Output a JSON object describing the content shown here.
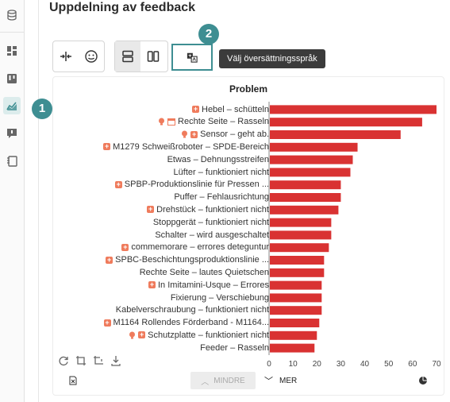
{
  "page": {
    "title": "Uppdelning av feedback"
  },
  "sidebar": {
    "icons": [
      "database-icon",
      "dashboard-icon",
      "board-icon",
      "analytics-icon",
      "feedback-icon",
      "notebook-icon"
    ],
    "active": "analytics-icon"
  },
  "toolbar": {
    "translate_tooltip": "Välj översättningsspråk"
  },
  "markers": {
    "one": "1",
    "two": "2"
  },
  "colors": {
    "bar": "#d93232",
    "accent": "#3e8e92",
    "badge": "#ef7b5c"
  },
  "chart_data": {
    "type": "bar",
    "orientation": "horizontal",
    "title": "Problem",
    "xlim": [
      0,
      70
    ],
    "xticks": [
      0,
      10,
      20,
      30,
      40,
      50,
      60,
      70
    ],
    "categories": [
      "Hebel – schütteln",
      "Rechte Seite – Rasseln",
      "Sensor – geht ab.",
      "M1279 Schweißroboter – SPDE-Bereich",
      "Etwas – Dehnungsstreifen",
      "Lüfter – funktioniert nicht",
      "SPBP-Produktionslinie für Pressen ...",
      "Puffer – Fehlausrichtung",
      "Drehstück – funktioniert nicht",
      "Stoppgerät – funktioniert nicht",
      "Schalter – wird ausgeschaltet",
      "commemorare – errores deteguntur",
      "SPBC-Beschichtungsproduktionslinie ...",
      "Rechte Seite – lautes Quietschen",
      "In Imitamini-Usque – Errores",
      "Fixierung – Verschiebung",
      "Kabelverschraubung – funktioniert nicht",
      "M1164 Rollendes Förderband - M1164...",
      "Schutzplatte – funktioniert nicht",
      "Feeder – Rasseln"
    ],
    "values": [
      70,
      64,
      55,
      37,
      35,
      34,
      30,
      30,
      29,
      26,
      26,
      25,
      23,
      23,
      22,
      22,
      22,
      21,
      20,
      19
    ],
    "row_icons": [
      [
        "plus"
      ],
      [
        "bulb",
        "calendar"
      ],
      [
        "bulb",
        "plus"
      ],
      [
        "plus"
      ],
      [],
      [],
      [
        "plus"
      ],
      [],
      [
        "plus"
      ],
      [],
      [],
      [
        "plus"
      ],
      [
        "plus"
      ],
      [],
      [
        "plus"
      ],
      [],
      [],
      [
        "plus"
      ],
      [
        "bulb",
        "plus"
      ],
      []
    ]
  },
  "footer": {
    "less_label": "MINDRE",
    "more_label": "MER"
  }
}
